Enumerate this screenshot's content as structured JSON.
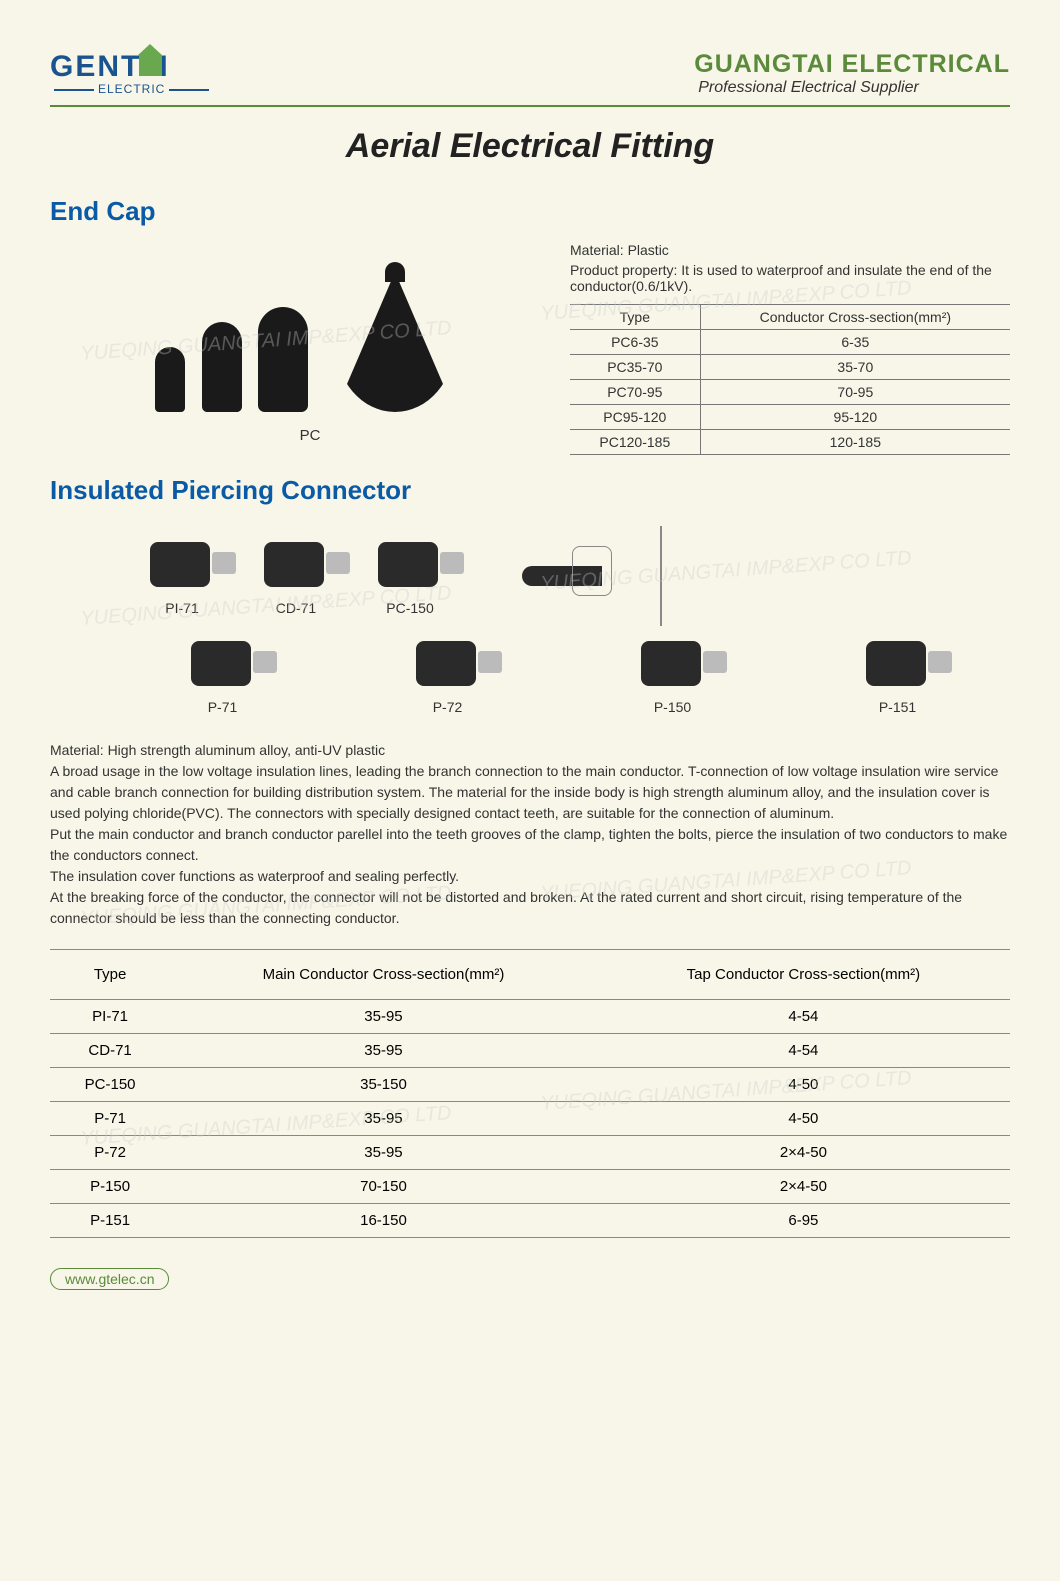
{
  "header": {
    "logo_text_pre": "GENT",
    "logo_text_post": "I",
    "logo_sub": "ELECTRIC",
    "company_name": "GUANGTAI ELECTRICAL",
    "company_sub": "Professional Electrical Supplier"
  },
  "page_title": "Aerial Electrical Fitting",
  "section1": {
    "title": "End Cap",
    "image_label": "PC",
    "material": "Material: Plastic",
    "property": "Product property: It is used to waterproof and insulate the end of the conductor(0.6/1kV).",
    "table_headers": [
      "Type",
      "Conductor Cross-section(mm²)"
    ],
    "rows": [
      [
        "PC6-35",
        "6-35"
      ],
      [
        "PC35-70",
        "35-70"
      ],
      [
        "PC70-95",
        "70-95"
      ],
      [
        "PC95-120",
        "95-120"
      ],
      [
        "PC120-185",
        "120-185"
      ]
    ]
  },
  "section2": {
    "title": "Insulated Piercing Connector",
    "row1_labels": [
      "PI-71",
      "CD-71",
      "PC-150"
    ],
    "row2_labels": [
      "P-71",
      "P-72",
      "P-150",
      "P-151"
    ],
    "description_lines": [
      "Material: High strength aluminum alloy, anti-UV plastic",
      "A broad usage in the low voltage insulation lines, leading the branch connection to the main conductor. T-connection of low voltage insulation wire service and cable branch connection for building distribution system. The material for the inside body is high strength aluminum alloy, and the insulation cover is used polying chloride(PVC). The connectors with specially designed contact teeth, are suitable for the connection of aluminum.",
      "Put the main conductor and branch conductor parellel into the teeth grooves of the clamp, tighten the bolts, pierce the insulation of two conductors to make the conductors connect.",
      "The insulation cover functions as waterproof and sealing perfectly.",
      "At the breaking force of the conductor, the connector will not be distorted and broken. At the rated current and short circuit, rising temperature of the connector should be less than the connecting conductor."
    ],
    "table_headers": [
      "Type",
      "Main Conductor Cross-section(mm²)",
      "Tap Conductor Cross-section(mm²)"
    ],
    "rows": [
      [
        "PI-71",
        "35-95",
        "4-54"
      ],
      [
        "CD-71",
        "35-95",
        "4-54"
      ],
      [
        "PC-150",
        "35-150",
        "4-50"
      ],
      [
        "P-71",
        "35-95",
        "4-50"
      ],
      [
        "P-72",
        "35-95",
        "2×4-50"
      ],
      [
        "P-150",
        "70-150",
        "2×4-50"
      ],
      [
        "P-151",
        "16-150",
        "6-95"
      ]
    ]
  },
  "website": "www.gtelec.cn",
  "watermark_text": "YUEQING GUANGTAI IMP&EXP CO LTD",
  "colors": {
    "bg": "#f7f6e8",
    "green": "#5a8a3a",
    "blue": "#0b5aa6",
    "logo_blue": "#1a5490",
    "text": "#333333",
    "border": "#777777"
  }
}
